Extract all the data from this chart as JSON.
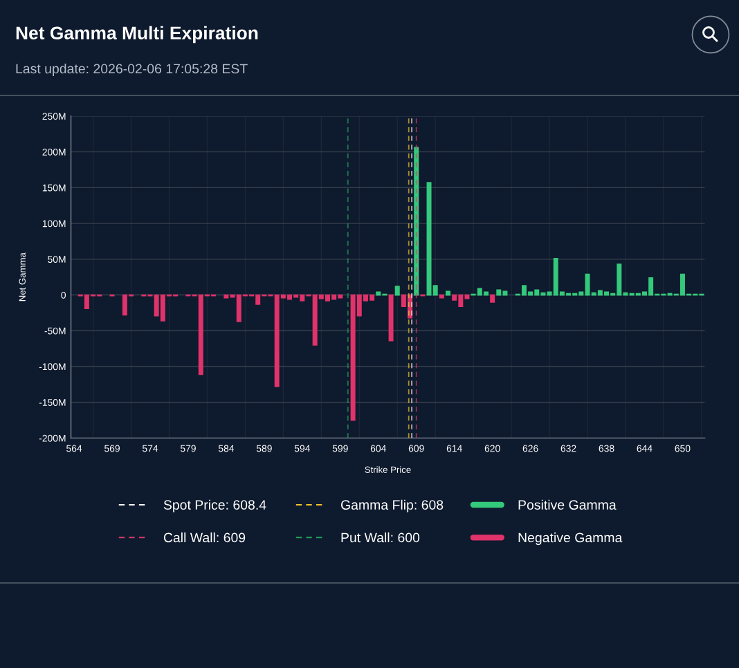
{
  "chart_data": {
    "type": "bar",
    "title": "Net Gamma Multi Expiration",
    "subtitle": "Last update: 2026-02-06 17:05:28 EST",
    "xlabel": "Strike Price",
    "ylabel": "Net Gamma",
    "categories": [
      "564",
      null,
      null,
      null,
      null,
      null,
      "569",
      null,
      null,
      null,
      null,
      null,
      "574",
      null,
      null,
      null,
      null,
      null,
      "579",
      null,
      null,
      null,
      null,
      null,
      "584",
      null,
      null,
      null,
      null,
      null,
      "589",
      null,
      null,
      null,
      null,
      null,
      "594",
      null,
      null,
      null,
      null,
      null,
      "599",
      null,
      null,
      null,
      null,
      null,
      "604",
      null,
      null,
      null,
      null,
      null,
      "609",
      null,
      null,
      null,
      null,
      null,
      "614",
      null,
      null,
      null,
      null,
      null,
      "620",
      null,
      null,
      null,
      null,
      null,
      "626",
      null,
      null,
      null,
      null,
      null,
      "632",
      null,
      null,
      null,
      null,
      null,
      "638",
      null,
      null,
      null,
      null,
      null,
      "644",
      null,
      null,
      null,
      null,
      null,
      "650",
      null,
      null,
      null
    ],
    "series": [
      {
        "name": "Positive Gamma",
        "color": "#34c97b",
        "values": [
          null,
          null,
          null,
          null,
          null,
          null,
          null,
          null,
          null,
          null,
          null,
          null,
          null,
          null,
          null,
          null,
          null,
          null,
          null,
          null,
          null,
          null,
          null,
          null,
          null,
          null,
          null,
          null,
          null,
          null,
          null,
          null,
          null,
          null,
          null,
          null,
          null,
          null,
          null,
          null,
          null,
          null,
          null,
          null,
          null,
          null,
          null,
          null,
          4,
          1,
          null,
          12,
          null,
          null,
          206,
          null,
          157,
          13,
          null,
          5,
          null,
          null,
          null,
          1,
          9,
          4,
          null,
          7,
          5,
          null,
          1,
          13,
          4,
          7,
          3,
          4,
          51,
          4,
          2,
          2,
          4,
          29,
          3,
          6,
          4,
          2,
          43,
          3,
          2,
          2,
          4,
          24,
          1,
          1,
          2,
          1,
          29,
          1,
          1,
          1
        ]
      },
      {
        "name": "Negative Gamma",
        "color": "#e0336b",
        "values": [
          null,
          -1,
          -19,
          -1,
          -1,
          null,
          -1,
          null,
          -28,
          -1,
          null,
          -1,
          -1,
          -29,
          -36,
          -1,
          -1,
          null,
          -1,
          -1,
          -111,
          -1,
          -1,
          null,
          -4,
          -3,
          -37,
          -1,
          -1,
          -13,
          -1,
          -1,
          -128,
          -4,
          -6,
          -3,
          -8,
          -1,
          -70,
          -5,
          -8,
          -6,
          -4,
          null,
          -175,
          -29,
          -8,
          -7,
          null,
          null,
          -64,
          null,
          -16,
          -32,
          null,
          -1,
          null,
          null,
          -4,
          null,
          -7,
          -16,
          -5,
          null,
          null,
          null,
          -10,
          null,
          null,
          null,
          null,
          null,
          null,
          null,
          null,
          null,
          null,
          null,
          null,
          null,
          null,
          null,
          null,
          null,
          null,
          null,
          null,
          null,
          null,
          null,
          null,
          null,
          null,
          null,
          null,
          null,
          null,
          null,
          null,
          null
        ]
      }
    ],
    "ylim": [
      -200,
      250
    ],
    "yticks": [
      {
        "value": -200,
        "label": "-200M"
      },
      {
        "value": -150,
        "label": "-150M"
      },
      {
        "value": -100,
        "label": "-100M"
      },
      {
        "value": -50,
        "label": "-50M"
      },
      0,
      {
        "value": 50,
        "label": "50M"
      },
      {
        "value": 100,
        "label": "100M"
      },
      {
        "value": 150,
        "label": "150M"
      },
      {
        "value": 200,
        "label": "200M"
      },
      {
        "value": 250,
        "label": "250M"
      }
    ],
    "grid": true,
    "legend": "bottom",
    "ref_lines": [
      {
        "axis": "x",
        "label": "Spot Price: 608.4",
        "color": "#ffffff",
        "line_style": "dashed"
      },
      {
        "axis": "x",
        "value": "609",
        "label": "Call Wall: 609",
        "color": "#d63a6a",
        "line_style": "dashed"
      },
      {
        "axis": "x",
        "label": "Gamma Flip: 608",
        "color": "#f2c12e",
        "line_style": "dashed"
      },
      {
        "axis": "x",
        "label": "Put Wall: 600",
        "color": "#23a35a",
        "line_style": "dashed"
      }
    ]
  }
}
